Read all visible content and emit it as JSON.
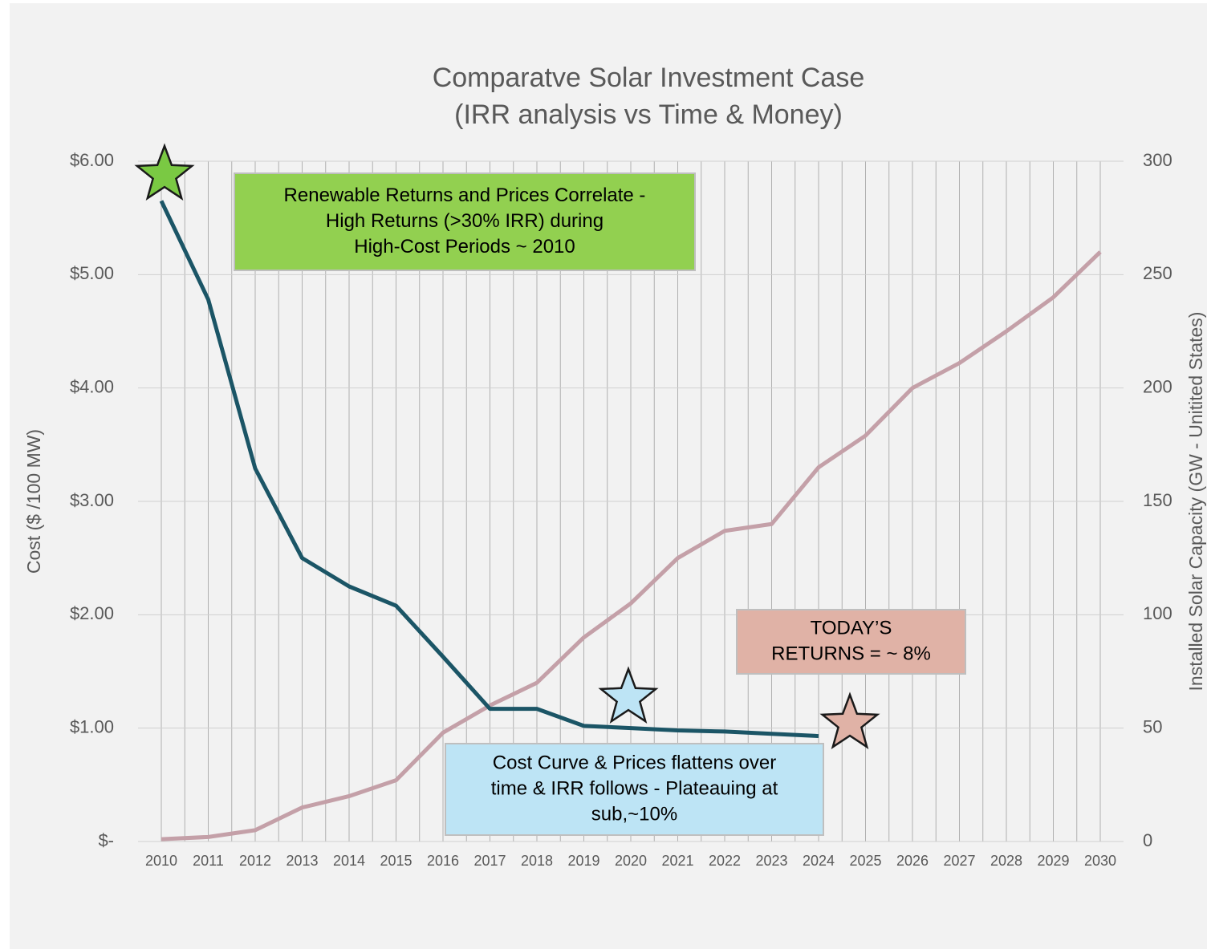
{
  "chart_data": {
    "type": "line",
    "title": [
      "Comparatve Solar Investment Case",
      "(IRR analysis vs Time & Money)"
    ],
    "y_label": "Cost ($ /100 MW)",
    "y2_label": "Installed Solar Capacity (GW - Unitited States)",
    "categories": [
      "2010",
      "2011",
      "2012",
      "2013",
      "2014",
      "2015",
      "2016",
      "2017",
      "2018",
      "2019",
      "2020",
      "2021",
      "2022",
      "2023",
      "2024",
      "2025",
      "2026",
      "2027",
      "2028",
      "2029",
      "2030"
    ],
    "series": [
      {
        "name": "Cost",
        "color": "#1b5566",
        "values": [
          5.65,
          4.78,
          3.29,
          2.5,
          2.25,
          2.08,
          1.63,
          1.17,
          1.17,
          1.02,
          1.0,
          0.98,
          0.97,
          0.95,
          0.93,
          null,
          null,
          null,
          null,
          null,
          null
        ]
      },
      {
        "name": "Installed Solar Capacity",
        "color": "#c4a0a8",
        "axis": "y2",
        "values": [
          1,
          2,
          5,
          15,
          20,
          27,
          48,
          60,
          70,
          90,
          105,
          125,
          137,
          140,
          165,
          179,
          200,
          211,
          225,
          240,
          260
        ]
      }
    ],
    "ylim": [
      0,
      6
    ],
    "yticks": [
      {
        "value": 0,
        "label": "$-"
      },
      {
        "value": 1,
        "label": "$1.00"
      },
      {
        "value": 2,
        "label": "$2.00"
      },
      {
        "value": 3,
        "label": "$3.00"
      },
      {
        "value": 4,
        "label": "$4.00"
      },
      {
        "value": 5,
        "label": "$5.00"
      },
      {
        "value": 6,
        "label": "$6.00"
      }
    ],
    "y2lim": [
      0,
      300
    ],
    "y2ticks": [
      0,
      50,
      100,
      150,
      200,
      250,
      300
    ],
    "grid": true,
    "annotations": [
      {
        "lines": [
          "Renewable Returns and Prices Correlate -",
          "High Returns (>30% IRR) during",
          "High-Cost Periods ~ 2010"
        ],
        "color": "#92d050"
      },
      {
        "lines": [
          "TODAY’S",
          "RETURNS = ~ 8%"
        ],
        "color": "#e0b2a6"
      },
      {
        "lines": [
          "Cost Curve & Prices flattens over",
          "time & IRR follows - Plateauing at",
          "sub,~10%"
        ],
        "color": "#bde4f5"
      }
    ]
  }
}
